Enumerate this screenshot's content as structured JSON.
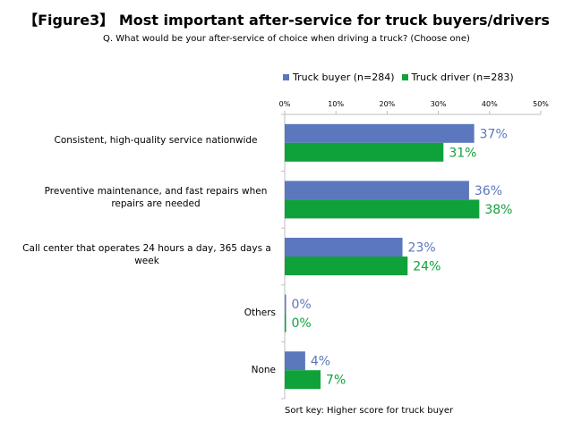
{
  "chart_data": {
    "type": "bar",
    "orientation": "horizontal",
    "title": "【Figure3】 Most important after-service for truck buyers/drivers",
    "subtitle": "Q. What would be your after-service of choice when driving a truck? (Choose one)",
    "categories": [
      "Consistent, high-quality service nationwide",
      "Preventive maintenance, and fast repairs when repairs are needed",
      "Call center that operates 24 hours a day, 365 days a week",
      "Others",
      "None"
    ],
    "series": [
      {
        "name": "Truck buyer (n=284)",
        "color": "#5b77bd",
        "values": [
          37,
          36,
          23,
          0,
          4
        ],
        "labels": [
          "37%",
          "36%",
          "23%",
          "0%",
          "4%"
        ]
      },
      {
        "name": "Truck driver (n=283)",
        "color": "#10a23a",
        "values": [
          31,
          38,
          24,
          0,
          7
        ],
        "labels": [
          "31%",
          "38%",
          "24%",
          "0%",
          "7%"
        ]
      }
    ],
    "xlim": [
      0,
      50
    ],
    "xticks": [
      "0%",
      "10%",
      "20%",
      "30%",
      "40%",
      "50%"
    ],
    "legend_position": "top-right",
    "grid": false,
    "footnote": "Sort key: Higher score for truck buyer"
  }
}
